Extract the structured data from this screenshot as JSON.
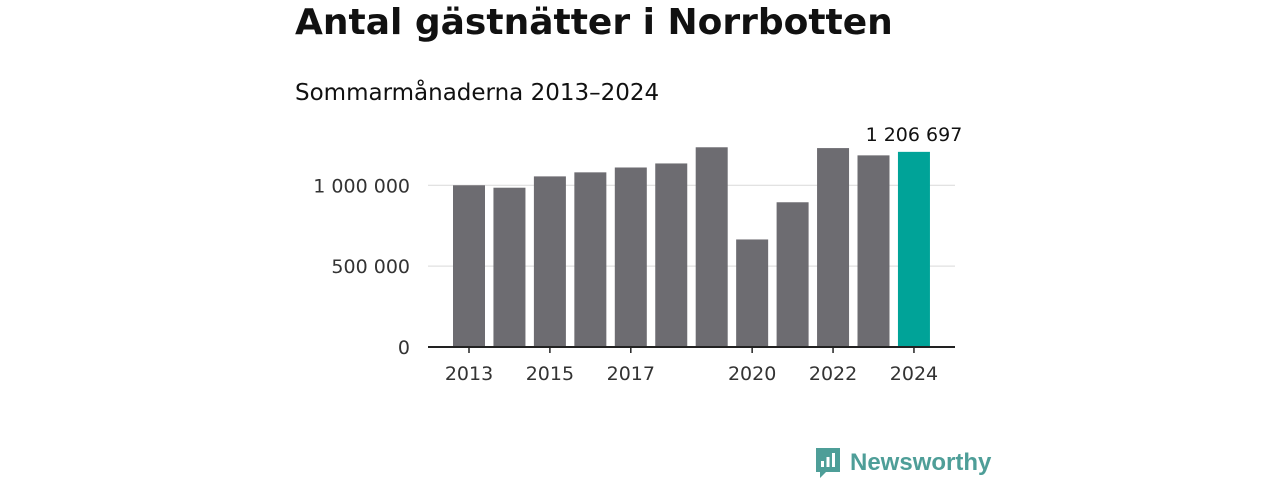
{
  "title": "Antal gästnätter i Norrbotten",
  "subtitle": "Sommarmånaderna 2013–2024",
  "brand": {
    "name": "Newsworthy",
    "icon": "newsworthy-logo-icon",
    "color": "#4e9e98"
  },
  "chart_data": {
    "type": "bar",
    "categories": [
      "2013",
      "2014",
      "2015",
      "2016",
      "2017",
      "2018",
      "2019",
      "2020",
      "2021",
      "2022",
      "2023",
      "2024"
    ],
    "values": [
      1000000,
      985000,
      1055000,
      1080000,
      1110000,
      1135000,
      1235000,
      665000,
      895000,
      1230000,
      1185000,
      1206697
    ],
    "x_tick_labels": [
      "2013",
      "",
      "2015",
      "",
      "2017",
      "",
      "",
      "2020",
      "",
      "2022",
      "",
      "2024"
    ],
    "y_ticks": [
      0,
      500000,
      1000000
    ],
    "y_tick_labels": [
      "0",
      "500 000",
      "1 000 000"
    ],
    "ylim": [
      0,
      1280000
    ],
    "highlight_index": 11,
    "highlight_label": "1 206 697",
    "bar_color": "#6d6c71",
    "highlight_color": "#00a398",
    "grid": true
  }
}
